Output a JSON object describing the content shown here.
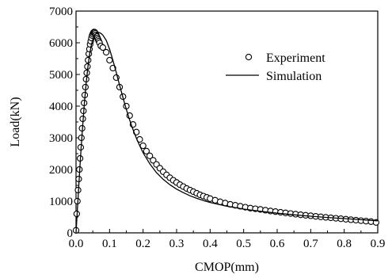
{
  "chart_data": {
    "type": "scatter",
    "title": "",
    "xlabel": "CMOP(mm)",
    "ylabel": "Load(kN)",
    "xlim": [
      0.0,
      0.9
    ],
    "ylim": [
      0,
      7000
    ],
    "xticks": [
      0.0,
      0.1,
      0.2,
      0.3,
      0.4,
      0.5,
      0.6,
      0.7,
      0.8,
      0.9
    ],
    "xtick_labels": [
      "0.0",
      "0.1",
      "0.2",
      "0.3",
      "0.4",
      "0.5",
      "0.6",
      "0.7",
      "0.8",
      "0.9"
    ],
    "yticks": [
      0,
      1000,
      2000,
      3000,
      4000,
      5000,
      6000,
      7000
    ],
    "ytick_labels": [
      "0",
      "1000",
      "2000",
      "3000",
      "4000",
      "5000",
      "6000",
      "7000"
    ],
    "grid": false,
    "legend_position": "top-right",
    "series": [
      {
        "name": "Experiment",
        "style": "open-circle-marker",
        "color": "#000000",
        "x": [
          0.0,
          0.002,
          0.004,
          0.006,
          0.008,
          0.01,
          0.012,
          0.014,
          0.016,
          0.018,
          0.02,
          0.022,
          0.024,
          0.026,
          0.028,
          0.03,
          0.032,
          0.034,
          0.036,
          0.038,
          0.04,
          0.042,
          0.044,
          0.046,
          0.048,
          0.05,
          0.052,
          0.054,
          0.056,
          0.058,
          0.06,
          0.062,
          0.064,
          0.066,
          0.068,
          0.07,
          0.074,
          0.08,
          0.09,
          0.1,
          0.11,
          0.12,
          0.13,
          0.14,
          0.15,
          0.16,
          0.17,
          0.18,
          0.19,
          0.2,
          0.21,
          0.22,
          0.23,
          0.24,
          0.25,
          0.26,
          0.27,
          0.28,
          0.29,
          0.3,
          0.31,
          0.32,
          0.33,
          0.34,
          0.35,
          0.36,
          0.37,
          0.38,
          0.39,
          0.4,
          0.415,
          0.43,
          0.445,
          0.46,
          0.475,
          0.49,
          0.505,
          0.52,
          0.535,
          0.55,
          0.565,
          0.58,
          0.595,
          0.61,
          0.625,
          0.64,
          0.655,
          0.67,
          0.685,
          0.7,
          0.715,
          0.73,
          0.745,
          0.76,
          0.775,
          0.79,
          0.805,
          0.82,
          0.835,
          0.85,
          0.865,
          0.88,
          0.895
        ],
        "y": [
          80,
          600,
          1000,
          1350,
          1700,
          2000,
          2350,
          2700,
          3000,
          3300,
          3600,
          3850,
          4100,
          4350,
          4600,
          4850,
          5050,
          5250,
          5450,
          5650,
          5800,
          5950,
          6050,
          6150,
          6230,
          6280,
          6320,
          6340,
          6330,
          6300,
          6250,
          6200,
          6150,
          6100,
          6050,
          6000,
          5900,
          5850,
          5700,
          5450,
          5200,
          4900,
          4600,
          4300,
          4000,
          3700,
          3420,
          3180,
          2950,
          2750,
          2580,
          2430,
          2290,
          2160,
          2040,
          1930,
          1830,
          1740,
          1660,
          1590,
          1520,
          1460,
          1400,
          1350,
          1300,
          1250,
          1200,
          1160,
          1120,
          1080,
          1030,
          980,
          940,
          900,
          870,
          840,
          810,
          780,
          760,
          740,
          715,
          690,
          670,
          650,
          630,
          610,
          590,
          570,
          555,
          540,
          520,
          505,
          490,
          475,
          460,
          445,
          430,
          415,
          400,
          385,
          370,
          355,
          330
        ]
      },
      {
        "name": "Simulation",
        "style": "solid-line",
        "color": "#000000",
        "x": [
          0.0,
          0.005,
          0.01,
          0.015,
          0.02,
          0.025,
          0.03,
          0.035,
          0.04,
          0.045,
          0.05,
          0.055,
          0.06,
          0.065,
          0.07,
          0.075,
          0.08,
          0.09,
          0.1,
          0.11,
          0.12,
          0.13,
          0.14,
          0.15,
          0.16,
          0.17,
          0.18,
          0.19,
          0.2,
          0.22,
          0.24,
          0.26,
          0.28,
          0.3,
          0.32,
          0.34,
          0.36,
          0.38,
          0.4,
          0.45,
          0.5,
          0.55,
          0.6,
          0.65,
          0.7,
          0.75,
          0.8,
          0.85,
          0.9
        ],
        "y": [
          0,
          900,
          1800,
          2650,
          3400,
          4100,
          4700,
          5200,
          5600,
          5900,
          6100,
          6230,
          6300,
          6330,
          6320,
          6290,
          6240,
          6080,
          5800,
          5450,
          5060,
          4660,
          4270,
          3900,
          3560,
          3260,
          2990,
          2750,
          2530,
          2180,
          1900,
          1690,
          1520,
          1380,
          1270,
          1170,
          1090,
          1020,
          960,
          840,
          750,
          680,
          620,
          570,
          525,
          485,
          450,
          415,
          380
        ]
      }
    ]
  }
}
